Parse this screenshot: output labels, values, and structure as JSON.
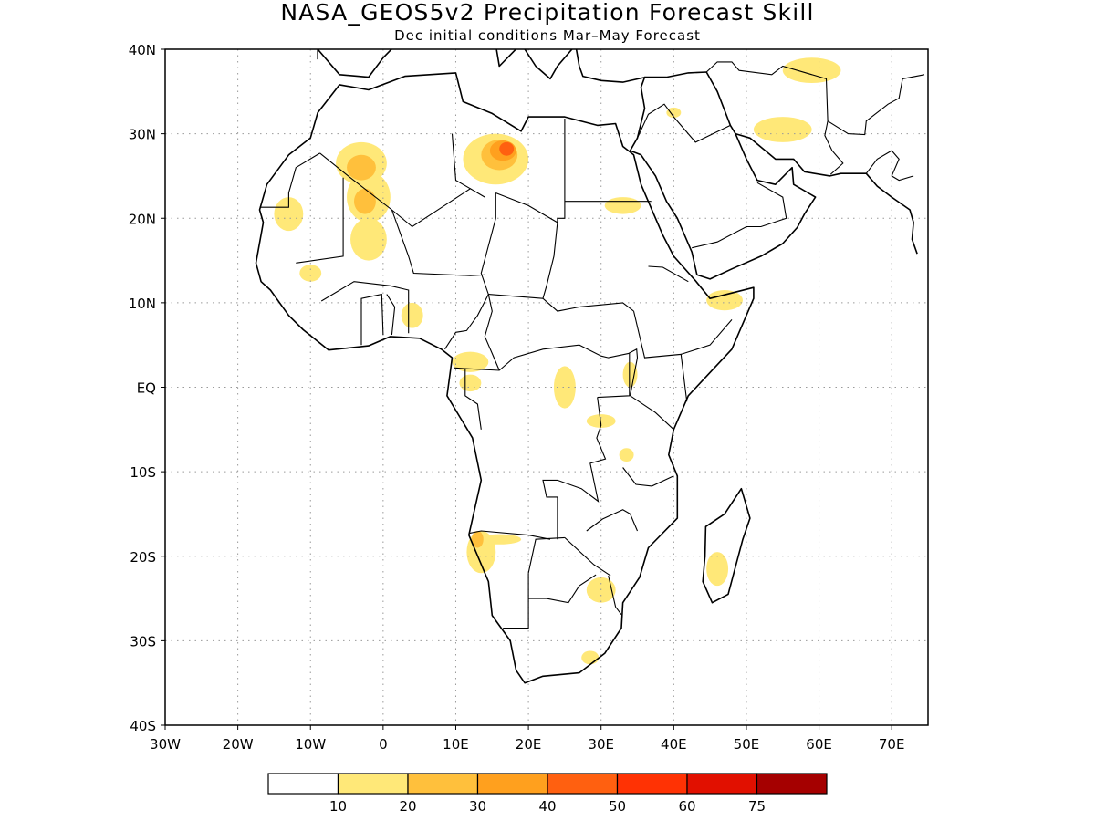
{
  "title": "NASA_GEOS5v2 Precipitation Forecast Skill",
  "subtitle": "Dec initial conditions  Mar–May Forecast",
  "chart_data": {
    "type": "heatmap",
    "title": "NASA_GEOS5v2 Precipitation Forecast Skill",
    "subtitle": "Dec initial conditions  Mar–May Forecast",
    "xlim": [
      -30,
      75
    ],
    "ylim": [
      -40,
      40
    ],
    "x_ticks": [
      {
        "value": -30,
        "label": "30W"
      },
      {
        "value": -20,
        "label": "20W"
      },
      {
        "value": -10,
        "label": "10W"
      },
      {
        "value": 0,
        "label": "0"
      },
      {
        "value": 10,
        "label": "10E"
      },
      {
        "value": 20,
        "label": "20E"
      },
      {
        "value": 30,
        "label": "30E"
      },
      {
        "value": 40,
        "label": "40E"
      },
      {
        "value": 50,
        "label": "50E"
      },
      {
        "value": 60,
        "label": "60E"
      },
      {
        "value": 70,
        "label": "70E"
      }
    ],
    "y_ticks": [
      {
        "value": 40,
        "label": "40N"
      },
      {
        "value": 30,
        "label": "30N"
      },
      {
        "value": 20,
        "label": "20N"
      },
      {
        "value": 10,
        "label": "10N"
      },
      {
        "value": 0,
        "label": "EQ"
      },
      {
        "value": -10,
        "label": "10S"
      },
      {
        "value": -20,
        "label": "20S"
      },
      {
        "value": -30,
        "label": "30S"
      },
      {
        "value": -40,
        "label": "40S"
      }
    ],
    "grid": true,
    "legend": {
      "placement": "bottom",
      "labels": [
        "10",
        "20",
        "30",
        "40",
        "50",
        "60",
        "75"
      ],
      "colors": [
        "#ffffff",
        "#ffe878",
        "#ffc03c",
        "#ffa01e",
        "#ff6010",
        "#ff3204",
        "#e11000",
        "#a50000"
      ]
    },
    "skill_regions": [
      {
        "lon": -3,
        "lat": 26.5,
        "rlon": 3.5,
        "rlat": 2.5,
        "level": 1
      },
      {
        "lon": -3,
        "lat": 26,
        "rlon": 2,
        "rlat": 1.5,
        "level": 2
      },
      {
        "lon": -2,
        "lat": 22.5,
        "rlon": 3,
        "rlat": 3,
        "level": 1
      },
      {
        "lon": -2.5,
        "lat": 22,
        "rlon": 1.5,
        "rlat": 1.5,
        "level": 2
      },
      {
        "lon": -13,
        "lat": 20.5,
        "rlon": 2,
        "rlat": 2,
        "level": 1
      },
      {
        "lon": -2,
        "lat": 17.5,
        "rlon": 2.5,
        "rlat": 2.5,
        "level": 1
      },
      {
        "lon": -10,
        "lat": 13.5,
        "rlon": 1.5,
        "rlat": 1,
        "level": 1
      },
      {
        "lon": 4,
        "lat": 8.5,
        "rlon": 1.5,
        "rlat": 1.5,
        "level": 1
      },
      {
        "lon": 15.5,
        "lat": 27,
        "rlon": 4.5,
        "rlat": 3,
        "level": 1
      },
      {
        "lon": 16,
        "lat": 27.5,
        "rlon": 2.5,
        "rlat": 1.8,
        "level": 2
      },
      {
        "lon": 16.5,
        "lat": 28,
        "rlon": 1.8,
        "rlat": 1.2,
        "level": 3
      },
      {
        "lon": 17,
        "lat": 28.2,
        "rlon": 1,
        "rlat": 0.8,
        "level": 4
      },
      {
        "lon": 33,
        "lat": 21.5,
        "rlon": 2.5,
        "rlat": 1,
        "level": 1
      },
      {
        "lon": 47,
        "lat": 10.3,
        "rlon": 2.5,
        "rlat": 1.2,
        "level": 1
      },
      {
        "lon": 55,
        "lat": 30.5,
        "rlon": 4,
        "rlat": 1.5,
        "level": 1
      },
      {
        "lon": 59,
        "lat": 37.5,
        "rlon": 4,
        "rlat": 1.5,
        "level": 1
      },
      {
        "lon": 12,
        "lat": 3,
        "rlon": 2.5,
        "rlat": 1.2,
        "level": 1
      },
      {
        "lon": 12,
        "lat": 0.5,
        "rlon": 1.5,
        "rlat": 1,
        "level": 1
      },
      {
        "lon": 25,
        "lat": 0,
        "rlon": 1.5,
        "rlat": 2.5,
        "level": 1
      },
      {
        "lon": 34,
        "lat": 1.5,
        "rlon": 1,
        "rlat": 1.5,
        "level": 1
      },
      {
        "lon": 30,
        "lat": -4,
        "rlon": 2,
        "rlat": 0.8,
        "level": 1
      },
      {
        "lon": 33.5,
        "lat": -8,
        "rlon": 1,
        "rlat": 0.8,
        "level": 1
      },
      {
        "lon": 13.5,
        "lat": -19.5,
        "rlon": 2,
        "rlat": 2.5,
        "level": 1
      },
      {
        "lon": 13,
        "lat": -18,
        "rlon": 0.8,
        "rlat": 1,
        "level": 2
      },
      {
        "lon": 30,
        "lat": -24,
        "rlon": 2,
        "rlat": 1.5,
        "level": 1
      },
      {
        "lon": 46,
        "lat": -21.5,
        "rlon": 1.5,
        "rlat": 2,
        "level": 1
      },
      {
        "lon": 16,
        "lat": -18,
        "rlon": 3,
        "rlat": 0.6,
        "level": 1
      },
      {
        "lon": 28.5,
        "lat": -32,
        "rlon": 1.2,
        "rlat": 0.8,
        "level": 1
      },
      {
        "lon": 40,
        "lat": 32.5,
        "rlon": 1,
        "rlat": 0.6,
        "level": 1
      }
    ]
  }
}
